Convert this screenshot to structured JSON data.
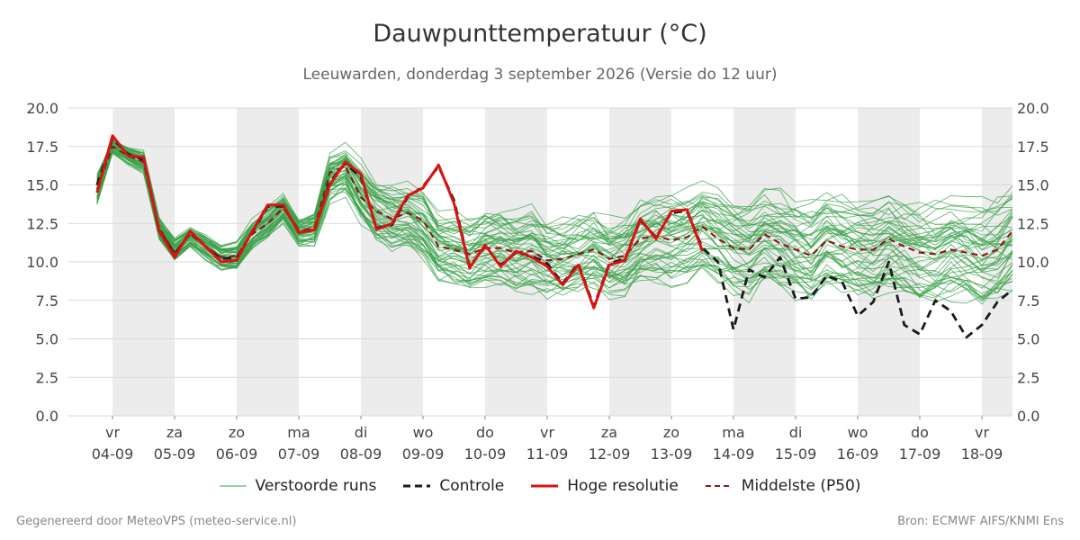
{
  "title": "Dauwpunttemperatuur (°C)",
  "subtitle": "Leeuwarden, donderdag  3 september 2026 (Versie do 12 uur)",
  "footer_left": "Gegenereerd door MeteoVPS (meteo-service.nl)",
  "footer_right": "Bron: ECMWF AIFS/KNMI Ens",
  "legend": [
    {
      "label": "Verstoorde runs",
      "color": "#3aa14a",
      "style": "thin"
    },
    {
      "label": "Controle",
      "color": "#1a1a1a",
      "style": "dashed"
    },
    {
      "label": "Hoge resolutie",
      "color": "#dd1111",
      "style": "solid"
    },
    {
      "label": "Middelste (P50)",
      "color": "#8b1a1a",
      "style": "dashed"
    }
  ],
  "chart_data": {
    "type": "line",
    "x_unit": "day (0 = vr 04-09)",
    "xlim": [
      -0.25,
      14.5
    ],
    "ylim": [
      0,
      20
    ],
    "yticks": [
      0.0,
      2.5,
      5.0,
      7.5,
      10.0,
      12.5,
      15.0,
      17.5,
      20.0
    ],
    "ytick_labels": [
      "0.0",
      "2.5",
      "5.0",
      "7.5",
      "10.0",
      "12.5",
      "15.0",
      "17.5",
      "20.0"
    ],
    "grid": true,
    "day_labels": [
      {
        "day": "vr",
        "date": "04-09"
      },
      {
        "day": "za",
        "date": "05-09"
      },
      {
        "day": "zo",
        "date": "06-09"
      },
      {
        "day": "ma",
        "date": "07-09"
      },
      {
        "day": "di",
        "date": "08-09"
      },
      {
        "day": "wo",
        "date": "09-09"
      },
      {
        "day": "do",
        "date": "10-09"
      },
      {
        "day": "vr",
        "date": "11-09"
      },
      {
        "day": "za",
        "date": "12-09"
      },
      {
        "day": "zo",
        "date": "13-09"
      },
      {
        "day": "ma",
        "date": "14-09"
      },
      {
        "day": "di",
        "date": "15-09"
      },
      {
        "day": "wo",
        "date": "16-09"
      },
      {
        "day": "do",
        "date": "17-09"
      },
      {
        "day": "vr",
        "date": "18-09"
      }
    ],
    "shaded_days": [
      0,
      2,
      4,
      6,
      8,
      10,
      12,
      14
    ],
    "series": [
      {
        "name": "Hoge resolutie",
        "color": "#dd1111",
        "x": [
          -0.25,
          0,
          0.25,
          0.5,
          0.75,
          1,
          1.25,
          1.5,
          1.75,
          2,
          2.25,
          2.5,
          2.75,
          3,
          3.25,
          3.5,
          3.75,
          4,
          4.25,
          4.5,
          4.75,
          5,
          5.25,
          5.5,
          5.75,
          6,
          6.25,
          6.5,
          6.75,
          7,
          7.25,
          7.5,
          7.75,
          8,
          8.25,
          8.5,
          8.75,
          9,
          9.25,
          9.5
        ],
        "values": [
          14.5,
          18.2,
          16.9,
          16.8,
          12.0,
          10.3,
          12.0,
          11.0,
          10.0,
          10.1,
          12.0,
          13.7,
          13.7,
          11.9,
          12.1,
          15.0,
          16.5,
          15.7,
          12.1,
          12.5,
          14.3,
          14.8,
          16.3,
          13.8,
          9.6,
          11.1,
          9.7,
          10.7,
          10.3,
          9.7,
          8.5,
          9.8,
          7.0,
          9.8,
          10.1,
          12.8,
          11.5,
          13.3,
          13.4,
          10.7
        ]
      },
      {
        "name": "Controle",
        "color": "#1a1a1a",
        "x": [
          -0.25,
          0,
          0.25,
          0.5,
          0.75,
          1,
          1.25,
          1.5,
          1.75,
          2,
          2.25,
          2.5,
          2.75,
          3,
          3.25,
          3.5,
          3.75,
          4,
          4.25,
          4.5,
          4.75,
          5,
          5.25,
          5.5,
          5.75,
          6,
          6.25,
          6.5,
          6.75,
          7,
          7.25,
          7.5,
          7.75,
          8,
          8.25,
          8.5,
          8.75,
          9,
          9.25,
          9.5,
          9.75,
          10,
          10.25,
          10.5,
          10.75,
          11,
          11.25,
          11.5,
          11.75,
          12,
          12.25,
          12.5,
          12.75,
          13,
          13.25,
          13.5,
          13.75,
          14,
          14.25,
          14.5
        ],
        "values": [
          15.0,
          18.0,
          17.0,
          16.6,
          12.1,
          10.5,
          11.9,
          11.0,
          10.2,
          10.3,
          11.9,
          13.6,
          13.6,
          12.0,
          12.0,
          15.2,
          16.4,
          15.5,
          12.2,
          12.4,
          14.2,
          14.9,
          16.2,
          14.0,
          9.7,
          11.0,
          9.8,
          10.6,
          10.4,
          9.9,
          8.6,
          9.9,
          7.1,
          9.9,
          10.2,
          12.7,
          11.6,
          13.2,
          13.3,
          10.9,
          10.0,
          5.6,
          9.5,
          9.0,
          10.3,
          7.6,
          7.7,
          9.1,
          8.7,
          6.5,
          7.4,
          10.0,
          5.9,
          5.3,
          7.5,
          6.8,
          5.1,
          5.9,
          7.4,
          8.2
        ]
      },
      {
        "name": "Middelste (P50)",
        "color": "#8b1a1a",
        "x": [
          -0.25,
          0,
          0.25,
          0.5,
          0.75,
          1,
          1.25,
          1.5,
          1.75,
          2,
          2.25,
          2.5,
          2.75,
          3,
          3.25,
          3.5,
          3.75,
          4,
          4.25,
          4.5,
          4.75,
          5,
          5.25,
          5.5,
          5.75,
          6,
          6.25,
          6.5,
          6.75,
          7,
          7.25,
          7.5,
          7.75,
          8,
          8.25,
          8.5,
          8.75,
          9,
          9.25,
          9.5,
          9.75,
          10,
          10.25,
          10.5,
          10.75,
          11,
          11.25,
          11.5,
          11.75,
          12,
          12.25,
          12.5,
          12.75,
          13,
          13.25,
          13.5,
          13.75,
          14,
          14.25,
          14.5
        ],
        "values": [
          14.7,
          17.5,
          16.9,
          16.5,
          12.2,
          10.6,
          11.8,
          11.0,
          10.3,
          10.4,
          11.8,
          12.5,
          13.5,
          12.0,
          12.2,
          15.8,
          16.2,
          14.2,
          13.3,
          12.8,
          13.2,
          12.7,
          11.0,
          10.8,
          10.5,
          10.9,
          10.9,
          10.6,
          10.7,
          10.1,
          10.2,
          10.5,
          10.8,
          10.2,
          10.4,
          11.5,
          11.7,
          11.4,
          11.6,
          12.3,
          11.5,
          10.9,
          10.8,
          11.8,
          11.2,
          10.8,
          10.4,
          11.4,
          11.0,
          10.8,
          10.8,
          11.5,
          11.0,
          10.6,
          10.5,
          10.8,
          10.6,
          10.4,
          10.8,
          12.0
        ]
      }
    ],
    "ensemble": {
      "name": "Verstoorde runs",
      "color": "#3aa14a",
      "member_count": 50,
      "x": [
        -0.25,
        0,
        0.25,
        0.5,
        0.75,
        1,
        1.25,
        1.5,
        1.75,
        2,
        2.25,
        2.5,
        2.75,
        3,
        3.25,
        3.5,
        3.75,
        4,
        4.25,
        4.5,
        4.75,
        5,
        5.25,
        5.5,
        5.75,
        6,
        6.25,
        6.5,
        6.75,
        7,
        7.25,
        7.5,
        7.75,
        8,
        8.25,
        8.5,
        8.75,
        9,
        9.25,
        9.5,
        9.75,
        10,
        10.25,
        10.5,
        10.75,
        11,
        11.25,
        11.5,
        11.75,
        12,
        12.25,
        12.5,
        12.75,
        13,
        13.25,
        13.5,
        13.75,
        14,
        14.25,
        14.5
      ],
      "band_median": [
        14.7,
        17.5,
        16.9,
        16.5,
        12.2,
        10.8,
        11.6,
        11.0,
        10.3,
        10.4,
        11.8,
        12.5,
        13.5,
        12.0,
        12.2,
        15.5,
        16.0,
        14.5,
        13.3,
        12.8,
        12.8,
        12.3,
        11.0,
        10.8,
        10.5,
        10.9,
        10.9,
        10.6,
        10.7,
        10.1,
        10.2,
        10.5,
        10.8,
        10.2,
        10.4,
        11.3,
        11.5,
        11.4,
        11.6,
        12.0,
        11.5,
        10.9,
        10.8,
        11.5,
        11.2,
        10.8,
        10.4,
        11.2,
        11.0,
        10.8,
        10.8,
        11.3,
        11.0,
        10.6,
        10.5,
        10.8,
        10.6,
        10.4,
        10.8,
        11.5
      ],
      "band_spread": [
        1.2,
        0.5,
        0.6,
        0.8,
        0.8,
        0.8,
        0.7,
        0.9,
        0.9,
        1.0,
        1.0,
        1.0,
        1.0,
        1.0,
        1.2,
        1.6,
        1.6,
        2.0,
        2.2,
        2.4,
        2.5,
        2.6,
        2.6,
        2.6,
        2.6,
        2.7,
        2.8,
        2.8,
        2.8,
        2.8,
        2.8,
        2.9,
        3.0,
        3.0,
        3.0,
        3.0,
        3.0,
        3.1,
        3.1,
        3.2,
        3.2,
        3.2,
        3.3,
        3.3,
        3.3,
        3.3,
        3.4,
        3.4,
        3.4,
        3.5,
        3.5,
        3.5,
        3.5,
        3.6,
        3.6,
        3.6,
        3.6,
        3.7,
        3.7,
        3.7
      ]
    }
  }
}
